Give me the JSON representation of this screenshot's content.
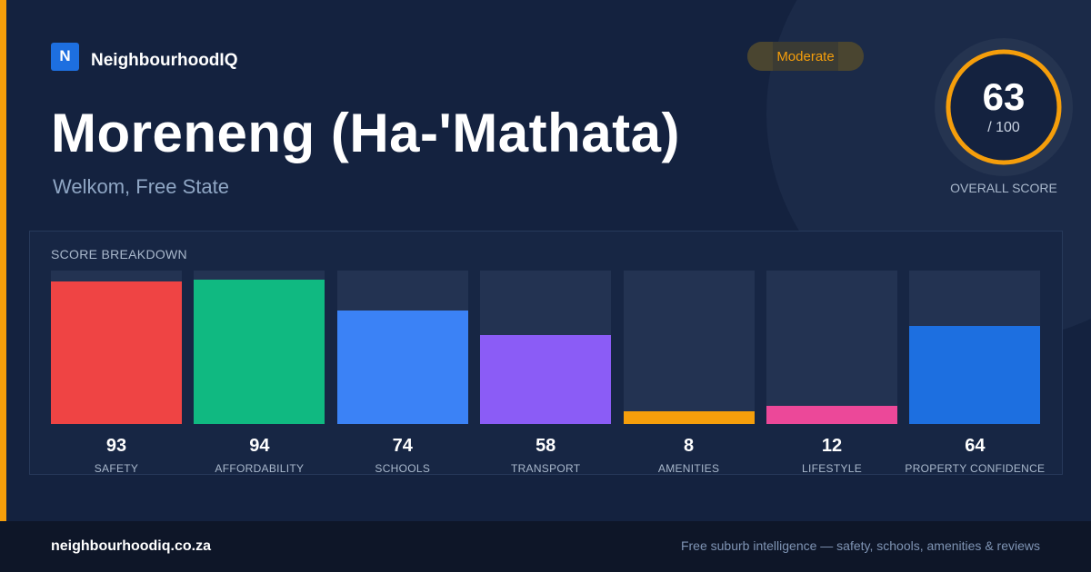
{
  "brand": {
    "logo_letter": "N",
    "name": "NeighbourhoodIQ"
  },
  "badge": {
    "label": "Moderate",
    "color": "#f59e0b"
  },
  "suburb": {
    "name": "Moreneng (Ha-'Mathata)",
    "location": "Welkom, Free State"
  },
  "overall": {
    "score": "63",
    "max_label": "/ 100",
    "label": "OVERALL SCORE",
    "fraction": 0.63,
    "ring_color": "#f59e0b"
  },
  "breakdown": {
    "title": "SCORE BREAKDOWN",
    "items": [
      {
        "label": "SAFETY",
        "value": "93",
        "color": "#ef4444"
      },
      {
        "label": "AFFORDABILITY",
        "value": "94",
        "color": "#10b981"
      },
      {
        "label": "SCHOOLS",
        "value": "74",
        "color": "#3b82f6"
      },
      {
        "label": "TRANSPORT",
        "value": "58",
        "color": "#8b5cf6"
      },
      {
        "label": "AMENITIES",
        "value": "8",
        "color": "#f59e0b"
      },
      {
        "label": "LIFESTYLE",
        "value": "12",
        "color": "#ec4899"
      },
      {
        "label": "PROPERTY CONFIDENCE",
        "value": "64",
        "color": "#1d6fe0"
      }
    ]
  },
  "footer": {
    "domain": "neighbourhoodiq.co.za",
    "tagline": "Free suburb intelligence — safety, schools, amenities & reviews"
  }
}
